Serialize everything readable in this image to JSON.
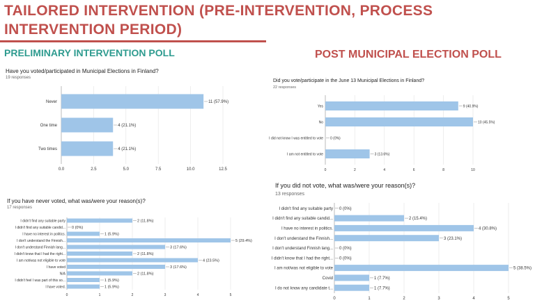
{
  "title": "TAILORED INTERVENTION (PRE-INTERVENTION, PROCESS INTERVENTION PERIOD)",
  "pre_heading": "PRELIMINARY INTERVENTION POLL",
  "post_heading": "POST MUNICIPAL ELECTION POLL",
  "colors": {
    "title": "#c0504d",
    "pre_heading": "#2e9b8f",
    "bar": "#9fc5e8",
    "grid": "#e3e3e3"
  },
  "chart_data": [
    {
      "id": "p1",
      "type": "bar",
      "orientation": "horizontal",
      "title": "Have you voted/participated in Municipal Elections in Finland?",
      "responses": "19 responses",
      "categories": [
        "Never",
        "One time",
        "Two times"
      ],
      "values": [
        11,
        4,
        4
      ],
      "value_labels": [
        "11 (57.9%)",
        "4 (21.1%)",
        "4 (21.1%)"
      ],
      "xlim": [
        0,
        12.5
      ],
      "ticks": [
        0,
        2.5,
        5,
        7.5,
        10,
        12.5
      ],
      "tick_labels": [
        "0.0",
        "2.5",
        "5.0",
        "7.5",
        "10.0",
        "12.5"
      ],
      "grid": true
    },
    {
      "id": "p2",
      "type": "bar",
      "orientation": "horizontal",
      "title": "Did you vote/participate in the June 13 Municipal Elections in Finland?",
      "responses": "22 responses",
      "categories": [
        "Yes",
        "No",
        "I did not know I was entitled to vote",
        "I am not entitled to vote"
      ],
      "values": [
        9,
        10,
        0,
        3
      ],
      "value_labels": [
        "9 (40.9%)",
        "10 (45.5%)",
        "0 (0%)",
        "3 (13.6%)"
      ],
      "xlim": [
        0,
        10
      ],
      "ticks": [
        0,
        2,
        4,
        6,
        8,
        10
      ],
      "tick_labels": [
        "0",
        "2",
        "4",
        "6",
        "8",
        "10"
      ],
      "grid": true
    },
    {
      "id": "p3",
      "type": "bar",
      "orientation": "horizontal",
      "title": "If you have never voted, what was/were your reason(s)?",
      "responses": "17 responses",
      "categories": [
        "I didn't find any suitable party",
        "I didn't find any suitable candid...",
        "I have no interest in politics.",
        "I don't understand the Finnish...",
        "I don't understand Finnish lang...",
        "I didn't know that I had the right...",
        "I am not/was not eligible to vote",
        "I have voted",
        "N/A",
        "I didn't feel I was part of this so...",
        "I have voted."
      ],
      "values": [
        2,
        0,
        1,
        5,
        3,
        2,
        4,
        3,
        2,
        1,
        1
      ],
      "value_labels": [
        "2 (11.8%)",
        "0 (0%)",
        "1 (5.9%)",
        "5 (29.4%)",
        "3 (17.6%)",
        "2 (11.8%)",
        "4 (23.5%)",
        "3 (17.6%)",
        "2 (11.8%)",
        "1 (5.9%)",
        "1 (5.9%)"
      ],
      "xlim": [
        0,
        5
      ],
      "ticks": [
        0,
        1,
        2,
        3,
        4,
        5
      ],
      "tick_labels": [
        "0",
        "1",
        "2",
        "3",
        "4",
        "5"
      ],
      "grid": true
    },
    {
      "id": "p4",
      "type": "bar",
      "orientation": "horizontal",
      "title": "If you did not vote, what was/were your reason(s)?",
      "responses": "13 responses",
      "categories": [
        "I didn't find any suitable party",
        "I didn't find any suitable candid...",
        "I have no interest in politics.",
        "I don't understand the Finnish...",
        "I don't understand Finnish lang...",
        "I didn't know that I had the right...",
        "I am not/was not eligible to vote",
        "Covid",
        "I do not know any candidate t..."
      ],
      "values": [
        0,
        2,
        4,
        3,
        0,
        0,
        5,
        1,
        1
      ],
      "value_labels": [
        "0 (0%)",
        "2 (15.4%)",
        "4 (30.8%)",
        "3 (23.1%)",
        "0 (0%)",
        "0 (0%)",
        "5 (38.5%)",
        "1 (7.7%)",
        "1 (7.7%)"
      ],
      "xlim": [
        0,
        5
      ],
      "ticks": [
        0,
        1,
        2,
        3,
        4,
        5
      ],
      "tick_labels": [
        "0",
        "1",
        "2",
        "3",
        "4",
        "5"
      ],
      "grid": true
    }
  ]
}
